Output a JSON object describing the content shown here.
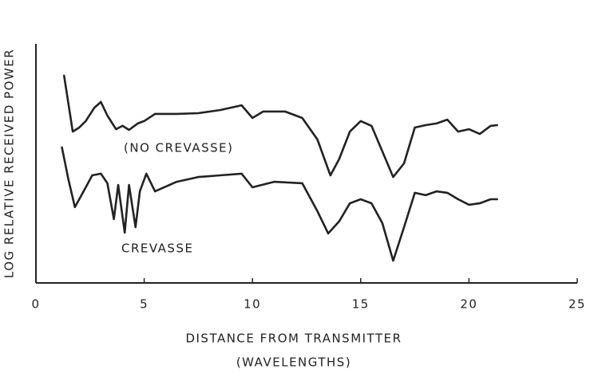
{
  "chart_data": {
    "type": "line",
    "xlabel": "DISTANCE FROM TRANSMITTER",
    "xlabel_sub": "(WAVELENGTHS)",
    "ylabel": "LOG RELATIVE RECEIVED POWER",
    "xlim": [
      0,
      25
    ],
    "xticks": [
      0,
      5,
      10,
      15,
      20,
      25
    ],
    "ylim": [
      0,
      100
    ],
    "yticks": [],
    "color": "#222222",
    "series": [
      {
        "name": "(NO CREVASSE)",
        "color": "#222222",
        "x": [
          1.3,
          1.7,
          2.0,
          2.3,
          2.7,
          3.0,
          3.3,
          3.7,
          4.0,
          4.3,
          4.7,
          5.0,
          5.5,
          6.5,
          7.5,
          8.5,
          9.5,
          10,
          10.5,
          11.5,
          12.3,
          13.0,
          13.6,
          14.0,
          14.5,
          15.0,
          15.5,
          16.0,
          16.5,
          17.0,
          17.5,
          18.0,
          18.5,
          19.0,
          19.5,
          20,
          20.5,
          21,
          21.3
        ],
        "values": [
          86.7,
          63.3,
          65,
          67.7,
          73.3,
          75.7,
          70,
          64.3,
          65.7,
          64,
          66.7,
          67.7,
          70.7,
          70.7,
          71,
          72.3,
          74.3,
          69,
          71.7,
          71.7,
          69,
          60,
          45,
          51.7,
          63.3,
          67.7,
          65.7,
          55,
          44.3,
          50,
          65,
          66,
          66.7,
          68.3,
          63.3,
          64.3,
          62.3,
          65.7,
          66
        ]
      },
      {
        "name": "CREVASSE",
        "color": "#222222",
        "x": [
          1.2,
          1.5,
          1.8,
          2.2,
          2.6,
          3.0,
          3.3,
          3.6,
          3.8,
          4.1,
          4.3,
          4.6,
          4.8,
          5.1,
          5.5,
          6.5,
          7.5,
          8.5,
          9.5,
          10,
          11,
          12.3,
          13.0,
          13.5,
          14.0,
          14.5,
          15.0,
          15.5,
          16.0,
          16.5,
          17.0,
          17.5,
          18.0,
          18.5,
          19.0,
          19.5,
          20,
          20.5,
          21,
          21.3
        ],
        "values": [
          56.7,
          43.3,
          31.7,
          38.3,
          45,
          45.7,
          41.7,
          26.7,
          41,
          21,
          41,
          23.3,
          38.3,
          45.7,
          38.3,
          42.3,
          44.3,
          45,
          45.7,
          40,
          42.3,
          41.7,
          30,
          20.7,
          25.7,
          33.3,
          35,
          33.3,
          25,
          9.3,
          23.3,
          37.7,
          36.7,
          38.3,
          37.7,
          35,
          32.7,
          33.3,
          35,
          35
        ]
      }
    ]
  }
}
